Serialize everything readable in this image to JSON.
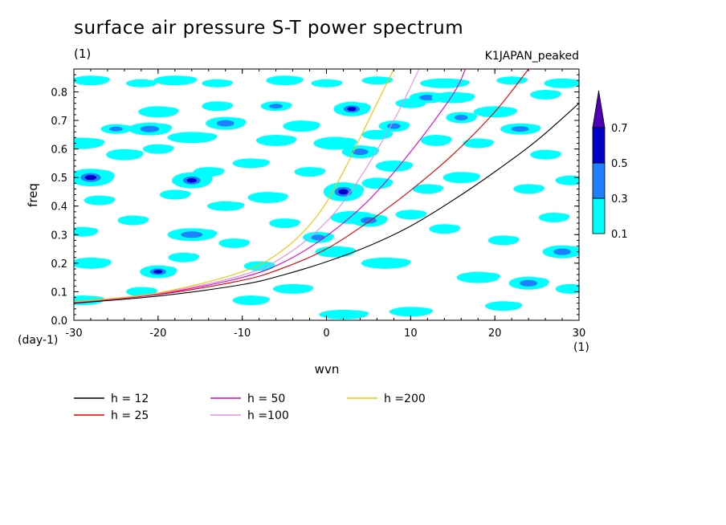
{
  "chart_data": {
    "type": "heatmap",
    "title": "surface air pressure S-T power spectrum",
    "units_label": "(1)",
    "run_name": "K1JAPAN_peaked",
    "xlabel": "wvn",
    "ylabel": "freq",
    "x_unit": "(1)",
    "y_unit": "(day-1)",
    "xlim": [
      -30,
      30
    ],
    "ylim": [
      0,
      0.88
    ],
    "x_ticks": [
      "-30",
      "-20",
      "-10",
      "0",
      "10",
      "20",
      "30"
    ],
    "y_ticks": [
      "0.0",
      "0.1",
      "0.2",
      "0.3",
      "0.4",
      "0.5",
      "0.6",
      "0.7",
      "0.8"
    ],
    "colorbar": {
      "levels": [
        "0.1",
        "0.3",
        "0.5",
        "0.7"
      ],
      "colors": [
        "#00ffff",
        "#1e7fff",
        "#0000c8",
        "#5000b4"
      ]
    },
    "contour_color": "#00ffff",
    "series": [
      {
        "name": "h = 12",
        "color": "#000000",
        "x": [
          -30,
          -20,
          -10,
          -5,
          0,
          5,
          10,
          15,
          20,
          25,
          30
        ],
        "y": [
          0.06,
          0.085,
          0.125,
          0.16,
          0.205,
          0.26,
          0.33,
          0.42,
          0.52,
          0.63,
          0.76
        ]
      },
      {
        "name": "h = 25",
        "color": "#e00000",
        "x": [
          -30,
          -20,
          -10,
          -5,
          0,
          5,
          10,
          15,
          20,
          24
        ],
        "y": [
          0.062,
          0.09,
          0.14,
          0.185,
          0.25,
          0.345,
          0.455,
          0.58,
          0.73,
          0.88
        ]
      },
      {
        "name": "h = 50",
        "color": "#e000c0",
        "x": [
          -30,
          -20,
          -10,
          -5,
          0,
          5,
          10,
          15,
          16.5
        ],
        "y": [
          0.063,
          0.092,
          0.15,
          0.205,
          0.295,
          0.42,
          0.59,
          0.79,
          0.88
        ]
      },
      {
        "name": "h =100",
        "color": "#e090e0",
        "x": [
          -30,
          -20,
          -10,
          -5,
          0,
          4,
          8,
          11
        ],
        "y": [
          0.064,
          0.094,
          0.158,
          0.225,
          0.345,
          0.5,
          0.7,
          0.88
        ]
      },
      {
        "name": "h =200",
        "color": "#f0c000",
        "x": [
          -30,
          -20,
          -10,
          -5,
          -1,
          2,
          5,
          8
        ],
        "y": [
          0.065,
          0.096,
          0.17,
          0.25,
          0.37,
          0.52,
          0.7,
          0.88
        ]
      }
    ],
    "blobs": [
      [
        -28,
        0.84,
        1.2,
        0.012,
        0
      ],
      [
        -22,
        0.83,
        1.0,
        0.01,
        0
      ],
      [
        -18,
        0.84,
        1.4,
        0.012,
        0
      ],
      [
        -13,
        0.83,
        1.0,
        0.01,
        0
      ],
      [
        -5,
        0.84,
        1.2,
        0.012,
        0
      ],
      [
        0,
        0.83,
        1.0,
        0.01,
        0
      ],
      [
        6,
        0.84,
        1.0,
        0.01,
        0
      ],
      [
        14,
        0.83,
        1.6,
        0.012,
        0
      ],
      [
        22,
        0.84,
        1.0,
        0.01,
        0
      ],
      [
        28,
        0.83,
        1.2,
        0.012,
        0
      ],
      [
        -29,
        0.62,
        1.4,
        0.014,
        0
      ],
      [
        -28,
        0.5,
        1.5,
        0.022,
        2
      ],
      [
        -27,
        0.42,
        1.0,
        0.012,
        0
      ],
      [
        -29,
        0.31,
        1.0,
        0.012,
        0
      ],
      [
        -28,
        0.2,
        1.3,
        0.014,
        0
      ],
      [
        -29,
        0.07,
        1.4,
        0.012,
        0
      ],
      [
        -25,
        0.67,
        1.0,
        0.012,
        1
      ],
      [
        -24,
        0.58,
        1.2,
        0.014,
        0
      ],
      [
        -23,
        0.35,
        1.0,
        0.012,
        0
      ],
      [
        -20,
        0.73,
        1.3,
        0.014,
        0
      ],
      [
        -21,
        0.67,
        1.4,
        0.016,
        1
      ],
      [
        -20,
        0.6,
        1.0,
        0.012,
        0
      ],
      [
        -20,
        0.17,
        1.2,
        0.016,
        2
      ],
      [
        -22,
        0.1,
        1.0,
        0.012,
        0
      ],
      [
        -18,
        0.44,
        1.0,
        0.012,
        0
      ],
      [
        -16,
        0.64,
        1.6,
        0.014,
        0
      ],
      [
        -16,
        0.49,
        1.3,
        0.02,
        2
      ],
      [
        -16,
        0.3,
        1.6,
        0.016,
        1
      ],
      [
        -17,
        0.22,
        1.0,
        0.012,
        0
      ],
      [
        -13,
        0.75,
        1.0,
        0.012,
        0
      ],
      [
        -12,
        0.69,
        1.3,
        0.016,
        1
      ],
      [
        -14,
        0.52,
        1.0,
        0.012,
        0
      ],
      [
        -12,
        0.4,
        1.2,
        0.012,
        0
      ],
      [
        -11,
        0.27,
        1.0,
        0.012,
        0
      ],
      [
        -9,
        0.55,
        1.2,
        0.012,
        0
      ],
      [
        -8,
        0.19,
        1.0,
        0.012,
        0
      ],
      [
        -9,
        0.07,
        1.2,
        0.012,
        0
      ],
      [
        -6,
        0.75,
        1.0,
        0.012,
        1
      ],
      [
        -6,
        0.63,
        1.3,
        0.014,
        0
      ],
      [
        -7,
        0.43,
        1.3,
        0.014,
        0
      ],
      [
        -5,
        0.34,
        1.0,
        0.012,
        0
      ],
      [
        -4,
        0.11,
        1.3,
        0.012,
        0
      ],
      [
        -3,
        0.68,
        1.2,
        0.014,
        0
      ],
      [
        -2,
        0.52,
        1.0,
        0.012,
        0
      ],
      [
        -1,
        0.29,
        1.0,
        0.014,
        1
      ],
      [
        1,
        0.62,
        1.4,
        0.016,
        0
      ],
      [
        1,
        0.24,
        1.3,
        0.014,
        0
      ],
      [
        2,
        0.02,
        1.6,
        0.012,
        0
      ],
      [
        3,
        0.74,
        1.2,
        0.018,
        2
      ],
      [
        2,
        0.45,
        1.3,
        0.024,
        2
      ],
      [
        3,
        0.36,
        1.4,
        0.016,
        0
      ],
      [
        4,
        0.59,
        1.2,
        0.016,
        1
      ],
      [
        5,
        0.35,
        1.2,
        0.016,
        1
      ],
      [
        6,
        0.65,
        1.0,
        0.012,
        0
      ],
      [
        6,
        0.48,
        1.0,
        0.014,
        0
      ],
      [
        7,
        0.2,
        1.6,
        0.014,
        0
      ],
      [
        8,
        0.68,
        1.0,
        0.014,
        1
      ],
      [
        8,
        0.54,
        1.2,
        0.014,
        0
      ],
      [
        10,
        0.76,
        1.0,
        0.012,
        0
      ],
      [
        10,
        0.37,
        1.0,
        0.012,
        0
      ],
      [
        10,
        0.03,
        1.4,
        0.012,
        0
      ],
      [
        12,
        0.78,
        1.2,
        0.014,
        1
      ],
      [
        13,
        0.63,
        1.0,
        0.014,
        0
      ],
      [
        12,
        0.46,
        1.0,
        0.012,
        0
      ],
      [
        14,
        0.32,
        1.0,
        0.012,
        0
      ],
      [
        15,
        0.78,
        1.4,
        0.014,
        0
      ],
      [
        16,
        0.71,
        1.0,
        0.014,
        1
      ],
      [
        16,
        0.5,
        1.2,
        0.014,
        0
      ],
      [
        18,
        0.62,
        1.0,
        0.012,
        0
      ],
      [
        18,
        0.15,
        1.4,
        0.014,
        0
      ],
      [
        20,
        0.73,
        1.4,
        0.014,
        0
      ],
      [
        21,
        0.28,
        1.0,
        0.012,
        0
      ],
      [
        21,
        0.05,
        1.2,
        0.012,
        0
      ],
      [
        23,
        0.67,
        1.3,
        0.014,
        1
      ],
      [
        24,
        0.46,
        1.0,
        0.012,
        0
      ],
      [
        24,
        0.13,
        1.3,
        0.016,
        1
      ],
      [
        26,
        0.58,
        1.0,
        0.012,
        0
      ],
      [
        27,
        0.36,
        1.0,
        0.012,
        0
      ],
      [
        28,
        0.24,
        1.3,
        0.016,
        1
      ],
      [
        29,
        0.49,
        1.0,
        0.012,
        0
      ],
      [
        29,
        0.11,
        1.0,
        0.012,
        0
      ],
      [
        26,
        0.79,
        1.0,
        0.012,
        0
      ]
    ]
  }
}
